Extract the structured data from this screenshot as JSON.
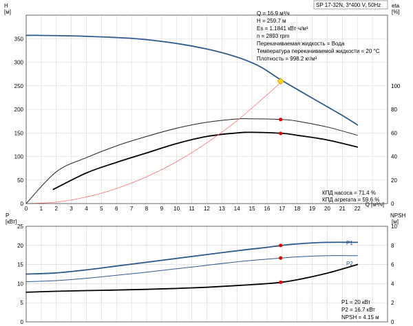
{
  "chart_data": [
    {
      "type": "line",
      "panel": "top",
      "title": "SP 17-32N, 3*400 V, 50Hz",
      "left_axis": {
        "label": "H",
        "unit": "[м]",
        "ylim": [
          0,
          400
        ],
        "ticks": [
          "0",
          "50",
          "100",
          "150",
          "200",
          "250",
          "300",
          "350"
        ]
      },
      "right_axis": {
        "label": "eta",
        "unit": "[%]",
        "ylim": [
          0,
          160
        ],
        "ticks": [
          "0",
          "20",
          "40",
          "60",
          "80",
          "100"
        ]
      },
      "x_axis": {
        "label": "Q",
        "unit": "[м³/ч]",
        "xlim": [
          0,
          24
        ],
        "ticks": [
          "0",
          "1",
          "2",
          "3",
          "4",
          "5",
          "6",
          "7",
          "8",
          "9",
          "10",
          "11",
          "12",
          "13",
          "14",
          "15",
          "16",
          "17",
          "18",
          "19",
          "20",
          "21",
          "22"
        ]
      },
      "grid": true,
      "series": [
        {
          "id": "H",
          "axis": "left",
          "color": "#2a5a8f",
          "x": [
            0,
            1,
            4,
            8,
            12,
            15,
            17,
            19,
            21,
            22
          ],
          "y": [
            357,
            357,
            355,
            348,
            328,
            299,
            261,
            224,
            187,
            167
          ]
        },
        {
          "id": "eta_pump",
          "axis": "right",
          "color": "#222222",
          "x": [
            0,
            2,
            4,
            6,
            8,
            10,
            12,
            14,
            15,
            17,
            18,
            20,
            22
          ],
          "y": [
            0,
            27,
            39,
            49,
            57,
            64,
            69,
            71.8,
            72.0,
            71.4,
            70,
            65,
            58
          ]
        },
        {
          "id": "eta_unit",
          "axis": "right",
          "color": "#000000",
          "x": [
            1.8,
            4,
            6,
            8,
            10,
            12,
            14,
            15,
            17,
            18,
            20,
            22
          ],
          "y": [
            12,
            26,
            35,
            43,
            51,
            57,
            60,
            60.5,
            59.6,
            58,
            54,
            48
          ]
        },
        {
          "id": "system_curve",
          "axis": "left",
          "color": "#ff6b6b",
          "x": [
            0,
            2,
            4,
            6,
            8,
            10,
            12,
            14,
            16,
            17
          ],
          "y": [
            0,
            3,
            14,
            32,
            57,
            89,
            129,
            176,
            231,
            259.7
          ]
        }
      ],
      "duty_points": [
        {
          "x": 16.9,
          "y": 259.7,
          "axis": "left",
          "kind": "operating",
          "color": "#ffd700"
        },
        {
          "x": 16.9,
          "y": 71.4,
          "axis": "right",
          "kind": "marker",
          "color": "#e00000"
        },
        {
          "x": 16.9,
          "y": 59.6,
          "axis": "right",
          "kind": "marker",
          "color": "#e00000"
        }
      ],
      "annotations": [
        "Q = 16.9 м³/ч",
        "H = 259.7 м",
        "Es = 1.1841 кВт·ч/м³",
        "n = 2893 rpm",
        "Перекачиваемая жидкость = Вода",
        "Температура перекачиваемой жидкости = 20 °C",
        "Плотность = 998.2 кг/м³"
      ],
      "efficiency_notes": [
        "КПД насоса = 71.4 %",
        "КПД агрегата = 59.6 %"
      ]
    },
    {
      "type": "line",
      "panel": "bottom",
      "left_axis": {
        "label": "P",
        "unit": "[кВт]",
        "ylim": [
          0,
          25
        ],
        "ticks": [
          "0",
          "5",
          "10",
          "15",
          "20",
          "25"
        ]
      },
      "right_axis": {
        "label": "NPSH",
        "unit": "[м]",
        "ylim": [
          0,
          10
        ],
        "ticks": [
          "0",
          "2",
          "4",
          "6",
          "8",
          "10"
        ]
      },
      "x_axis": {
        "xlim": [
          0,
          24
        ]
      },
      "grid": true,
      "series": [
        {
          "name": "P1",
          "axis": "left",
          "color": "#2a5a8f",
          "x": [
            0,
            2,
            4,
            6,
            8,
            10,
            12,
            14,
            16,
            17,
            18,
            20,
            22
          ],
          "y": [
            12.5,
            12.8,
            13.6,
            14.6,
            15.6,
            16.6,
            17.6,
            18.6,
            19.5,
            20.0,
            20.4,
            20.8,
            20.8
          ]
        },
        {
          "name": "P2",
          "axis": "left",
          "color": "#2a5a8f",
          "x": [
            0,
            2,
            4,
            6,
            8,
            10,
            12,
            14,
            16,
            17,
            18,
            20,
            22
          ],
          "y": [
            10.5,
            10.8,
            11.4,
            12.2,
            13.0,
            13.9,
            14.8,
            15.7,
            16.4,
            16.7,
            17.0,
            17.3,
            17.3
          ]
        },
        {
          "id": "NPSH",
          "axis": "right",
          "color": "#000000",
          "x": [
            0,
            2,
            4,
            6,
            8,
            10,
            12,
            14,
            16,
            17,
            18,
            20,
            22
          ],
          "y": [
            3.1,
            3.2,
            3.27,
            3.33,
            3.4,
            3.5,
            3.62,
            3.8,
            4.0,
            4.15,
            4.4,
            5.1,
            6.0
          ]
        }
      ],
      "duty_points": [
        {
          "x": 16.9,
          "y": 20.0,
          "axis": "left",
          "color": "#e00000"
        },
        {
          "x": 16.9,
          "y": 16.7,
          "axis": "left",
          "color": "#e00000"
        },
        {
          "x": 16.9,
          "y": 4.15,
          "axis": "right",
          "color": "#e00000"
        }
      ],
      "annotations": [
        "P1 = 20 кВт",
        "P2 = 16.7 кВт",
        "NPSH = 4.15 м"
      ]
    }
  ]
}
